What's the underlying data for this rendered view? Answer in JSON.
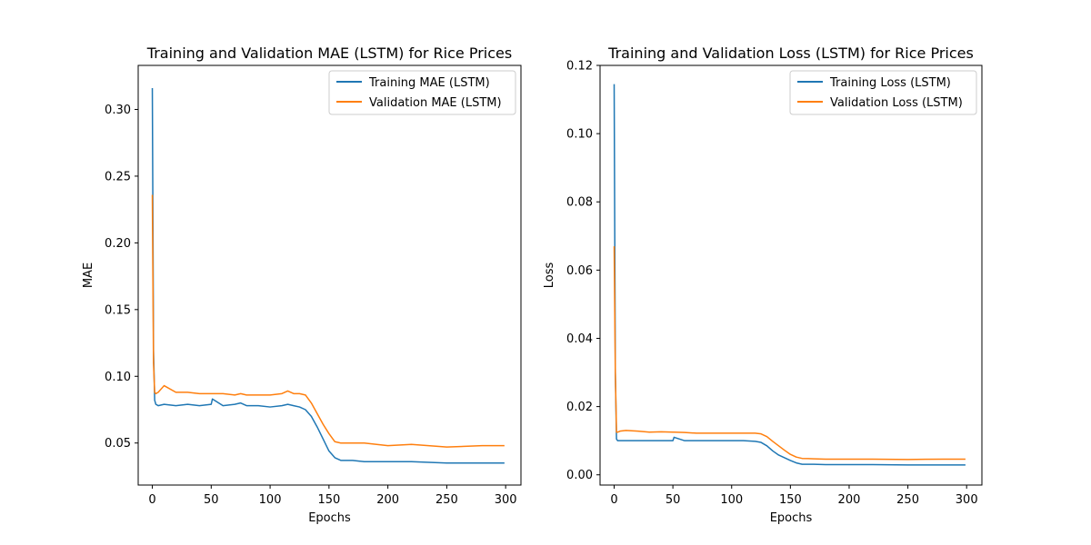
{
  "chart_data": [
    {
      "type": "line",
      "title": "Training and Validation MAE (LSTM) for Rice Prices",
      "xlabel": "Epochs",
      "ylabel": "MAE",
      "xlim": [
        -12,
        313
      ],
      "ylim": [
        0.0185,
        0.333
      ],
      "xticks": [
        0,
        50,
        100,
        150,
        200,
        250,
        300
      ],
      "xtick_labels": [
        "0",
        "50",
        "100",
        "150",
        "200",
        "250",
        "300"
      ],
      "yticks": [
        0.05,
        0.1,
        0.15,
        0.2,
        0.25,
        0.3
      ],
      "ytick_labels": [
        "0.05",
        "0.10",
        "0.15",
        "0.20",
        "0.25",
        "0.30"
      ],
      "grid": false,
      "legend_position": "top-right",
      "x": [
        0,
        1,
        2,
        3,
        5,
        10,
        20,
        30,
        40,
        50,
        51,
        60,
        70,
        75,
        80,
        90,
        100,
        110,
        115,
        120,
        125,
        130,
        135,
        140,
        145,
        150,
        155,
        160,
        170,
        180,
        200,
        220,
        250,
        280,
        299
      ],
      "series": [
        {
          "name": "Training MAE (LSTM)",
          "color": "#1f77b4",
          "values": [
            0.316,
            0.12,
            0.082,
            0.079,
            0.078,
            0.079,
            0.078,
            0.079,
            0.078,
            0.079,
            0.083,
            0.078,
            0.079,
            0.08,
            0.078,
            0.078,
            0.077,
            0.078,
            0.079,
            0.078,
            0.077,
            0.075,
            0.07,
            0.062,
            0.053,
            0.044,
            0.039,
            0.037,
            0.037,
            0.036,
            0.036,
            0.036,
            0.035,
            0.035,
            0.035
          ]
        },
        {
          "name": "Validation MAE (LSTM)",
          "color": "#ff7f0e",
          "values": [
            0.236,
            0.11,
            0.088,
            0.087,
            0.088,
            0.093,
            0.088,
            0.088,
            0.087,
            0.087,
            0.087,
            0.087,
            0.086,
            0.087,
            0.086,
            0.086,
            0.086,
            0.087,
            0.089,
            0.087,
            0.087,
            0.086,
            0.08,
            0.072,
            0.064,
            0.057,
            0.051,
            0.05,
            0.05,
            0.05,
            0.048,
            0.049,
            0.047,
            0.048,
            0.048
          ]
        }
      ]
    },
    {
      "type": "line",
      "title": "Training and Validation Loss (LSTM) for Rice Prices",
      "xlabel": "Epochs",
      "ylabel": "Loss",
      "xlim": [
        -12,
        313
      ],
      "ylim": [
        -0.003,
        0.12
      ],
      "xticks": [
        0,
        50,
        100,
        150,
        200,
        250,
        300
      ],
      "xtick_labels": [
        "0",
        "50",
        "100",
        "150",
        "200",
        "250",
        "300"
      ],
      "yticks": [
        0.0,
        0.02,
        0.04,
        0.06,
        0.08,
        0.1,
        0.12
      ],
      "ytick_labels": [
        "0.00",
        "0.02",
        "0.04",
        "0.06",
        "0.08",
        "0.10",
        "0.12"
      ],
      "grid": false,
      "legend_position": "top-right",
      "x": [
        0,
        1,
        2,
        3,
        5,
        10,
        20,
        30,
        40,
        50,
        51,
        60,
        70,
        80,
        90,
        100,
        110,
        120,
        125,
        130,
        135,
        140,
        145,
        150,
        155,
        160,
        170,
        180,
        200,
        220,
        250,
        280,
        299
      ],
      "series": [
        {
          "name": "Training Loss (LSTM)",
          "color": "#1f77b4",
          "values": [
            0.1145,
            0.03,
            0.0105,
            0.01,
            0.01,
            0.01,
            0.01,
            0.01,
            0.01,
            0.01,
            0.011,
            0.01,
            0.01,
            0.01,
            0.01,
            0.01,
            0.01,
            0.0098,
            0.0095,
            0.0085,
            0.007,
            0.0058,
            0.005,
            0.0042,
            0.0035,
            0.0031,
            0.0031,
            0.003,
            0.003,
            0.003,
            0.0029,
            0.0029,
            0.0029
          ]
        },
        {
          "name": "Validation Loss (LSTM)",
          "color": "#ff7f0e",
          "values": [
            0.067,
            0.03,
            0.0125,
            0.0125,
            0.0128,
            0.013,
            0.0128,
            0.0125,
            0.0126,
            0.0125,
            0.0125,
            0.0124,
            0.0122,
            0.0122,
            0.0122,
            0.0122,
            0.0122,
            0.0122,
            0.012,
            0.0112,
            0.0098,
            0.0085,
            0.0072,
            0.006,
            0.0052,
            0.0048,
            0.0047,
            0.0046,
            0.0046,
            0.0046,
            0.0045,
            0.0046,
            0.0046
          ]
        }
      ]
    }
  ]
}
